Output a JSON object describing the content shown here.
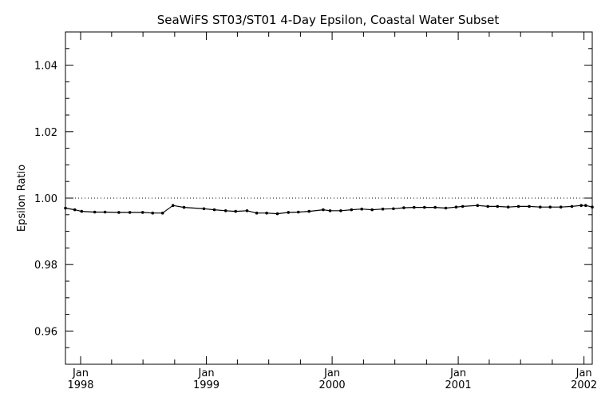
{
  "chart_data": {
    "type": "line",
    "title": "SeaWiFS ST03/ST01 4-Day Epsilon, Coastal Water Subset",
    "xlabel": "",
    "ylabel": "Epsilon Ratio",
    "xlim": [
      "1997-11-18",
      "2002-01-25"
    ],
    "ylim": [
      0.95,
      1.05
    ],
    "x_tick_labels": [
      {
        "month": "Jan",
        "year": "1998",
        "date": "1998-01-01"
      },
      {
        "month": "Jan",
        "year": "1999",
        "date": "1999-01-01"
      },
      {
        "month": "Jan",
        "year": "2000",
        "date": "2000-01-01"
      },
      {
        "month": "Jan",
        "year": "2001",
        "date": "2001-01-01"
      },
      {
        "month": "Jan",
        "year": "2002",
        "date": "2002-01-01"
      }
    ],
    "y_ticks": [
      0.96,
      0.98,
      1.0,
      1.02,
      1.04
    ],
    "y_tick_labels": [
      "0.96",
      "0.98",
      "1.00",
      "1.02",
      "1.04"
    ],
    "reference_line": {
      "y": 1.0,
      "style": "dotted"
    },
    "grid": false,
    "series": [
      {
        "x": [
          "1997-11-18",
          "1997-12-15",
          "1998-01-04",
          "1998-02-11",
          "1998-03-13",
          "1998-04-22",
          "1998-05-24",
          "1998-06-30",
          "1998-07-29",
          "1998-08-27",
          "1998-09-26",
          "1998-10-28",
          "1998-12-25",
          "1999-01-24",
          "1999-02-26",
          "1999-03-27",
          "1999-04-29",
          "1999-05-27",
          "1999-06-25",
          "1999-07-26",
          "1999-08-27",
          "1999-09-25",
          "1999-10-26",
          "1999-12-06",
          "1999-12-26",
          "2000-01-26",
          "2000-02-26",
          "2000-03-27",
          "2000-04-26",
          "2000-05-27",
          "2000-06-27",
          "2000-07-27",
          "2000-08-26",
          "2000-09-25",
          "2000-10-26",
          "2000-11-26",
          "2000-12-26",
          "2001-01-14",
          "2001-02-26",
          "2001-03-28",
          "2001-04-25",
          "2001-05-26",
          "2001-06-25",
          "2001-07-26",
          "2001-08-27",
          "2001-09-25",
          "2001-10-26",
          "2001-11-27",
          "2001-12-24",
          "2002-01-06",
          "2002-01-25"
        ],
        "values": [
          0.997,
          0.9965,
          0.996,
          0.9958,
          0.9958,
          0.9957,
          0.9957,
          0.9957,
          0.9955,
          0.9955,
          0.9978,
          0.9972,
          0.9968,
          0.9965,
          0.9962,
          0.996,
          0.9962,
          0.9955,
          0.9955,
          0.9953,
          0.9957,
          0.9958,
          0.996,
          0.9965,
          0.9962,
          0.9962,
          0.9965,
          0.9967,
          0.9965,
          0.9967,
          0.9968,
          0.9971,
          0.9972,
          0.9972,
          0.9972,
          0.997,
          0.9973,
          0.9975,
          0.9978,
          0.9975,
          0.9975,
          0.9973,
          0.9975,
          0.9975,
          0.9973,
          0.9973,
          0.9973,
          0.9975,
          0.9978,
          0.9978,
          0.9973
        ]
      }
    ]
  }
}
